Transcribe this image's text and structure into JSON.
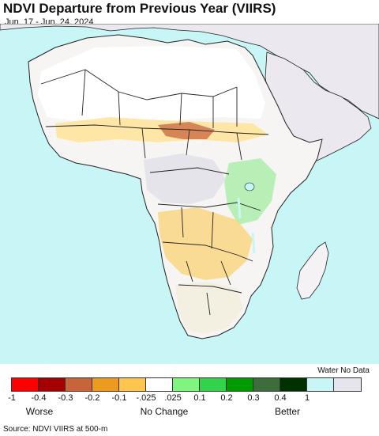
{
  "header": {
    "title": "NDVI Departure from Previous Year (VIIRS)",
    "date_range": "Jun. 17 - Jun. 24, 2024"
  },
  "map": {
    "region": "Africa",
    "colors": {
      "ocean": "#c8f6f6",
      "land_neutral": "#ffffff",
      "masked_land": "#ece8f0",
      "borders": "#222222"
    }
  },
  "legend": {
    "water_label": "Water No Data",
    "bins": [
      {
        "color": "#ff0000"
      },
      {
        "color": "#a50000"
      },
      {
        "color": "#c8643c"
      },
      {
        "color": "#ed9b1f"
      },
      {
        "color": "#fec64e"
      },
      {
        "color": "#ffffff"
      },
      {
        "color": "#7ff57f"
      },
      {
        "color": "#32d24b"
      },
      {
        "color": "#009b00"
      },
      {
        "color": "#3c6e3c"
      },
      {
        "color": "#003200"
      },
      {
        "color": "#c8f6f6"
      },
      {
        "color": "#e6e4ec"
      }
    ],
    "ticks": [
      "-1",
      "-0.4",
      "-0.3",
      "-0.2",
      "-0.1",
      "-.025",
      ".025",
      "0.1",
      "0.2",
      "0.3",
      "0.4",
      "1"
    ],
    "categories": [
      "Worse",
      "No Change",
      "Better"
    ]
  },
  "footer": {
    "source": "Source: NDVI VIIRS at 500-m"
  }
}
